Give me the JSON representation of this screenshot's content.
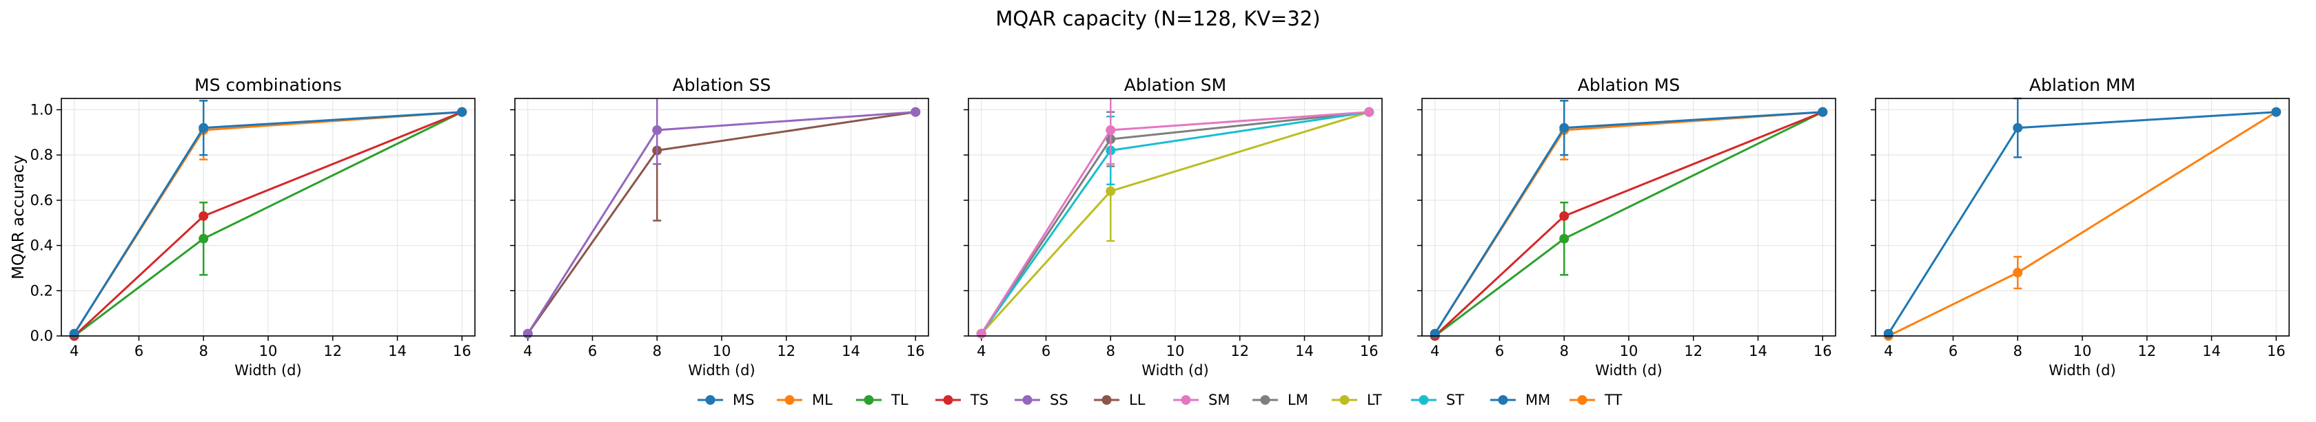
{
  "figure": {
    "title": "MQAR capacity (N=128, KV=32)"
  },
  "colors": {
    "MS": "#1f77b4",
    "ML": "#ff7f0e",
    "TL": "#2ca02c",
    "TS": "#d62728",
    "SS": "#9467bd",
    "LL": "#8c564b",
    "SM": "#e377c2",
    "LM": "#7f7f7f",
    "LT": "#bcbd22",
    "ST": "#17becf",
    "MM": "#1f77b4",
    "TT": "#ff7f0e"
  },
  "legend": {
    "placement": "bottom-center",
    "entries": [
      "MS",
      "ML",
      "TL",
      "TS",
      "SS",
      "LL",
      "SM",
      "LM",
      "LT",
      "ST",
      "MM",
      "TT"
    ]
  },
  "chart_data": [
    {
      "type": "line",
      "title": "MS combinations",
      "xlabel": "Width (d)",
      "ylabel": "MQAR accuracy",
      "xlim": [
        3.6,
        16.4
      ],
      "ylim": [
        0,
        1.05
      ],
      "xticks": [
        4,
        6,
        8,
        10,
        12,
        14,
        16
      ],
      "yticks": [
        0.0,
        0.2,
        0.4,
        0.6,
        0.8,
        1.0
      ],
      "grid": true,
      "x": [
        4,
        8,
        16
      ],
      "series": [
        {
          "name": "TL",
          "values": [
            0.0,
            0.43,
            0.99
          ],
          "errors": [
            0,
            0.16,
            0
          ]
        },
        {
          "name": "TS",
          "values": [
            0.0,
            0.53,
            0.99
          ],
          "errors": [
            0,
            0,
            0
          ]
        },
        {
          "name": "ML",
          "values": [
            0.01,
            0.91,
            0.99
          ],
          "errors": [
            0,
            0.13,
            0
          ]
        },
        {
          "name": "MS",
          "values": [
            0.01,
            0.92,
            0.99
          ],
          "errors": [
            0,
            0.12,
            0
          ]
        }
      ]
    },
    {
      "type": "line",
      "title": "Ablation SS",
      "xlabel": "Width (d)",
      "ylabel": "",
      "xlim": [
        3.6,
        16.4
      ],
      "ylim": [
        0,
        1.05
      ],
      "xticks": [
        4,
        6,
        8,
        10,
        12,
        14,
        16
      ],
      "yticks": [
        0.0,
        0.2,
        0.4,
        0.6,
        0.8,
        1.0
      ],
      "grid": true,
      "x": [
        4,
        8,
        16
      ],
      "series": [
        {
          "name": "LL",
          "values": [
            0.01,
            0.82,
            0.99
          ],
          "errors": [
            0,
            0.31,
            0
          ]
        },
        {
          "name": "SS",
          "values": [
            0.01,
            0.91,
            0.99
          ],
          "errors": [
            0,
            0.15,
            0
          ]
        }
      ]
    },
    {
      "type": "line",
      "title": "Ablation SM",
      "xlabel": "Width (d)",
      "ylabel": "",
      "xlim": [
        3.6,
        16.4
      ],
      "ylim": [
        0,
        1.05
      ],
      "xticks": [
        4,
        6,
        8,
        10,
        12,
        14,
        16
      ],
      "yticks": [
        0.0,
        0.2,
        0.4,
        0.6,
        0.8,
        1.0
      ],
      "grid": true,
      "x": [
        4,
        8,
        16
      ],
      "series": [
        {
          "name": "LT",
          "values": [
            0.01,
            0.64,
            0.99
          ],
          "errors": [
            0,
            0.22,
            0
          ]
        },
        {
          "name": "LM",
          "values": [
            0.01,
            0.87,
            0.99
          ],
          "errors": [
            0,
            0.12,
            0
          ]
        },
        {
          "name": "ST",
          "values": [
            0.01,
            0.82,
            0.99
          ],
          "errors": [
            0,
            0.15,
            0
          ]
        },
        {
          "name": "SM",
          "values": [
            0.01,
            0.91,
            0.99
          ],
          "errors": [
            0,
            0.15,
            0
          ]
        }
      ]
    },
    {
      "type": "line",
      "title": "Ablation MS",
      "xlabel": "Width (d)",
      "ylabel": "",
      "xlim": [
        3.6,
        16.4
      ],
      "ylim": [
        0,
        1.05
      ],
      "xticks": [
        4,
        6,
        8,
        10,
        12,
        14,
        16
      ],
      "yticks": [
        0.0,
        0.2,
        0.4,
        0.6,
        0.8,
        1.0
      ],
      "grid": true,
      "x": [
        4,
        8,
        16
      ],
      "series": [
        {
          "name": "TL",
          "values": [
            0.0,
            0.43,
            0.99
          ],
          "errors": [
            0,
            0.16,
            0
          ]
        },
        {
          "name": "TS",
          "values": [
            0.0,
            0.53,
            0.99
          ],
          "errors": [
            0,
            0,
            0
          ]
        },
        {
          "name": "ML",
          "values": [
            0.01,
            0.91,
            0.99
          ],
          "errors": [
            0,
            0.13,
            0
          ]
        },
        {
          "name": "MS",
          "values": [
            0.01,
            0.92,
            0.99
          ],
          "errors": [
            0,
            0.12,
            0
          ]
        }
      ]
    },
    {
      "type": "line",
      "title": "Ablation MM",
      "xlabel": "Width (d)",
      "ylabel": "",
      "xlim": [
        3.6,
        16.4
      ],
      "ylim": [
        0,
        1.05
      ],
      "xticks": [
        4,
        6,
        8,
        10,
        12,
        14,
        16
      ],
      "yticks": [
        0.0,
        0.2,
        0.4,
        0.6,
        0.8,
        1.0
      ],
      "grid": true,
      "x": [
        4,
        8,
        16
      ],
      "series": [
        {
          "name": "TT",
          "values": [
            0.0,
            0.28,
            0.99
          ],
          "errors": [
            0,
            0.07,
            0
          ]
        },
        {
          "name": "MM",
          "values": [
            0.01,
            0.92,
            0.99
          ],
          "errors": [
            0,
            0.13,
            0
          ]
        }
      ]
    }
  ]
}
